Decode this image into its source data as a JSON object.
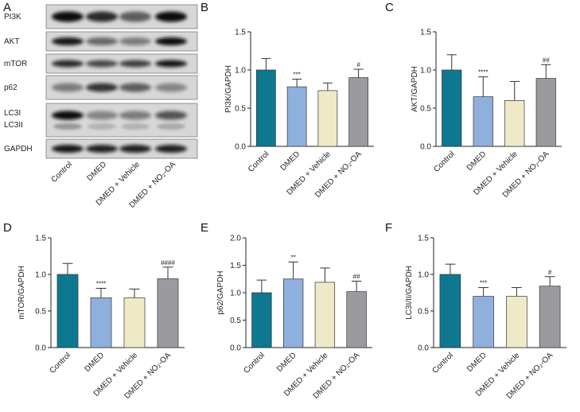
{
  "panel_letters": {
    "A": "A",
    "B": "B",
    "C": "C",
    "D": "D",
    "E": "E",
    "F": "F"
  },
  "categories": [
    "Control",
    "DMED",
    "DMED + Vehicle",
    "DMED + NO₂-OA"
  ],
  "colors": [
    "#0e7891",
    "#8fb0dc",
    "#efe9c8",
    "#9b9b9f"
  ],
  "blot": {
    "row_labels": [
      "PI3K",
      "AKT",
      "mTOR",
      "p62",
      "LC3I",
      "LC3II",
      "GAPDH"
    ],
    "lanes": [
      "Control",
      "DMED",
      "DMED + Vehicle",
      "DMED + NO₂-OA"
    ]
  },
  "chart_data": [
    {
      "type": "bar",
      "panel": "B",
      "ylabel": "PI3K/GAPDH",
      "ylim": [
        0,
        1.5
      ],
      "yticks": [
        0.0,
        0.5,
        1.0,
        1.5
      ],
      "categories": [
        "Control",
        "DMED",
        "DMED + Vehicle",
        "DMED + NO₂-OA"
      ],
      "values": [
        1.0,
        0.78,
        0.73,
        0.9
      ],
      "errors": [
        0.15,
        0.1,
        0.1,
        0.11
      ],
      "sig": [
        "",
        "***",
        "",
        "#"
      ]
    },
    {
      "type": "bar",
      "panel": "C",
      "ylabel": "AKT/GAPDH",
      "ylim": [
        0,
        1.5
      ],
      "yticks": [
        0.0,
        0.5,
        1.0,
        1.5
      ],
      "categories": [
        "Control",
        "DMED",
        "DMED + Vehicle",
        "DMED + NO₂-OA"
      ],
      "values": [
        1.0,
        0.65,
        0.6,
        0.89
      ],
      "errors": [
        0.2,
        0.26,
        0.25,
        0.18
      ],
      "sig": [
        "",
        "****",
        "",
        "##"
      ]
    },
    {
      "type": "bar",
      "panel": "D",
      "ylabel": "mTOR/GAPDH",
      "ylim": [
        0,
        1.5
      ],
      "yticks": [
        0.0,
        0.5,
        1.0,
        1.5
      ],
      "categories": [
        "Control",
        "DMED",
        "DMED + Vehicle",
        "DMED + NO₂-OA"
      ],
      "values": [
        1.0,
        0.68,
        0.68,
        0.94
      ],
      "errors": [
        0.15,
        0.13,
        0.12,
        0.16
      ],
      "sig": [
        "",
        "****",
        "",
        "####"
      ]
    },
    {
      "type": "bar",
      "panel": "E",
      "ylabel": "p62/GAPDH",
      "ylim": [
        0,
        2.0
      ],
      "yticks": [
        0.0,
        0.5,
        1.0,
        1.5,
        2.0
      ],
      "categories": [
        "Control",
        "DMED",
        "DMED + Vehicle",
        "DMED + NO₂-OA"
      ],
      "values": [
        1.0,
        1.25,
        1.19,
        1.02
      ],
      "errors": [
        0.23,
        0.31,
        0.26,
        0.19
      ],
      "sig": [
        "",
        "**",
        "",
        "##"
      ]
    },
    {
      "type": "bar",
      "panel": "F",
      "ylabel": "LC3I/II/GAPDH",
      "ylim": [
        0,
        1.5
      ],
      "yticks": [
        0.0,
        0.5,
        1.0,
        1.5
      ],
      "categories": [
        "Control",
        "DMED",
        "DMED + Vehicle",
        "DMED + NO₂-OA"
      ],
      "values": [
        1.0,
        0.7,
        0.7,
        0.84
      ],
      "errors": [
        0.14,
        0.12,
        0.12,
        0.13
      ],
      "sig": [
        "",
        "***",
        "",
        "#"
      ]
    }
  ]
}
